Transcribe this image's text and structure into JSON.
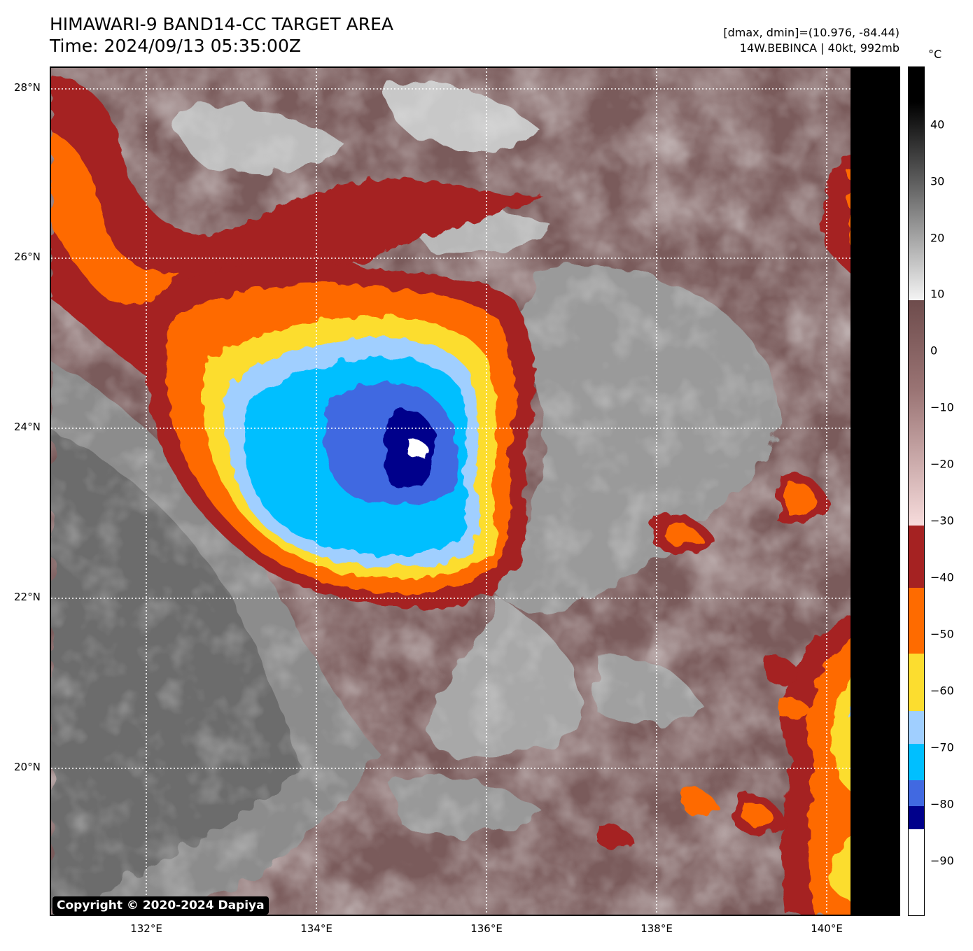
{
  "header": {
    "title": "HIMAWARI-9 BAND14-CC TARGET AREA",
    "time": "Time: 2024/09/13 05:35:00Z",
    "range": "[dmax, dmin]=(10.976, -84.44)",
    "storm": "14W.BEBINCA | 40kt, 992mb"
  },
  "map": {
    "lat_labels": [
      "28°N",
      "26°N",
      "24°N",
      "22°N",
      "20°N"
    ],
    "lon_labels": [
      "132°E",
      "134°E",
      "136°E",
      "138°E",
      "140°E"
    ],
    "copyright": "Copyright © 2020-2024 Dapiya"
  },
  "colorbar": {
    "unit": "°C",
    "tick_labels": [
      "40",
      "30",
      "20",
      "10",
      "0",
      "−10",
      "−20",
      "−30",
      "−40",
      "−50",
      "−60",
      "−70",
      "−80",
      "−90"
    ],
    "colors": {
      "white": "#ffffff",
      "dark_blue": "#00008b",
      "royal_blue": "#4169e1",
      "deep_sky_blue": "#00bfff",
      "light_blue": "#a0cfff",
      "yellow": "#fcdd2f",
      "orange": "#fe6b00",
      "dark_red": "#a52222",
      "light_pink": "#f5d9d9",
      "brown": "#7a5252",
      "gray_light": "#f4f4f4",
      "gray_dark": "#202020",
      "black": "#000000"
    }
  }
}
